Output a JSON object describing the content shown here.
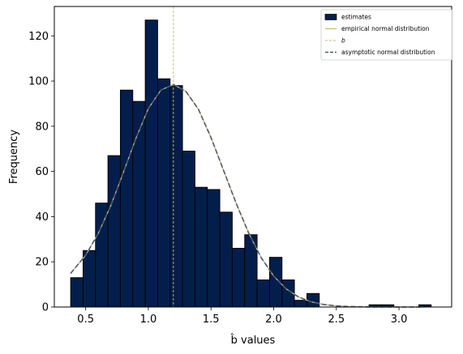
{
  "chart_data": {
    "type": "bar",
    "xlabel": "b̂ values",
    "ylabel": "Frequency",
    "xlim": [
      0.25,
      3.42
    ],
    "ylim": [
      0,
      133
    ],
    "x_ticks": [
      0.5,
      1.0,
      1.5,
      2.0,
      2.5,
      3.0
    ],
    "x_tick_labels": [
      "0.5",
      "1.0",
      "1.5",
      "2.0",
      "2.5",
      "3.0"
    ],
    "y_ticks": [
      0,
      20,
      40,
      60,
      80,
      100,
      120
    ],
    "y_tick_labels": [
      "0",
      "20",
      "40",
      "60",
      "80",
      "100",
      "120"
    ],
    "grid": false,
    "legend_placement": "top-right",
    "histogram": {
      "bin_edges": [
        0.38,
        0.4792,
        0.5784,
        0.6776,
        0.7768,
        0.876,
        0.9752,
        1.0744,
        1.1736,
        1.2728,
        1.372,
        1.4712,
        1.5704,
        1.6696,
        1.7688,
        1.868,
        1.9672,
        2.0664,
        2.1656,
        2.2648,
        2.364,
        2.4632,
        2.5624,
        2.6616,
        2.7608,
        2.86,
        2.9592,
        3.0584,
        3.1576,
        3.2568
      ],
      "counts": [
        13,
        25,
        46,
        67,
        96,
        91,
        127,
        101,
        98,
        69,
        53,
        52,
        42,
        26,
        32,
        12,
        22,
        12,
        3,
        6,
        0,
        0,
        0,
        0,
        1,
        1,
        0,
        0,
        1
      ],
      "color": "#041e4b",
      "edge_color": "#000000"
    },
    "series": [
      {
        "name": "estimates",
        "kind": "histogram",
        "color": "#041e4b"
      },
      {
        "name": "empirical normal distribution",
        "kind": "line",
        "color": "#c8b97a",
        "style": "solid",
        "x": [
          0.38,
          0.5,
          0.6,
          0.7,
          0.8,
          0.9,
          1.0,
          1.1,
          1.2,
          1.3,
          1.4,
          1.5,
          1.6,
          1.7,
          1.8,
          1.9,
          2.0,
          2.1,
          2.2,
          2.3,
          2.4,
          2.5,
          2.6,
          2.7,
          2.8,
          2.9,
          3.0,
          3.1,
          3.2
        ],
        "values": [
          14.9,
          22.9,
          32.5,
          44.8,
          59.4,
          74.5,
          87.8,
          96.0,
          98.5,
          95.4,
          87.5,
          75.0,
          60.5,
          46.0,
          32.8,
          21.9,
          13.7,
          8.0,
          4.4,
          2.3,
          1.1,
          0.5,
          0.2,
          0.1,
          0.0,
          0.0,
          0.0,
          0.0,
          0.0
        ]
      },
      {
        "name": "b",
        "kind": "vline",
        "color": "#c8b97a",
        "style": "dashed",
        "x": 1.2
      },
      {
        "name": "asymptotic normal distribution",
        "kind": "line",
        "color": "#505a6e",
        "style": "dashed",
        "x": [
          0.38,
          0.5,
          0.6,
          0.7,
          0.8,
          0.9,
          1.0,
          1.1,
          1.2,
          1.3,
          1.4,
          1.5,
          1.6,
          1.7,
          1.8,
          1.9,
          2.0,
          2.1,
          2.2,
          2.3,
          2.4,
          2.5,
          2.6,
          2.7,
          2.8,
          2.9,
          3.0,
          3.1,
          3.2
        ],
        "values": [
          14.9,
          22.9,
          32.5,
          44.8,
          59.4,
          74.5,
          87.8,
          96.0,
          98.5,
          95.4,
          87.5,
          75.0,
          60.5,
          46.0,
          32.8,
          21.9,
          13.7,
          8.0,
          4.4,
          2.3,
          1.1,
          0.5,
          0.2,
          0.1,
          0.0,
          0.0,
          0.0,
          0.0,
          0.0
        ]
      }
    ]
  }
}
